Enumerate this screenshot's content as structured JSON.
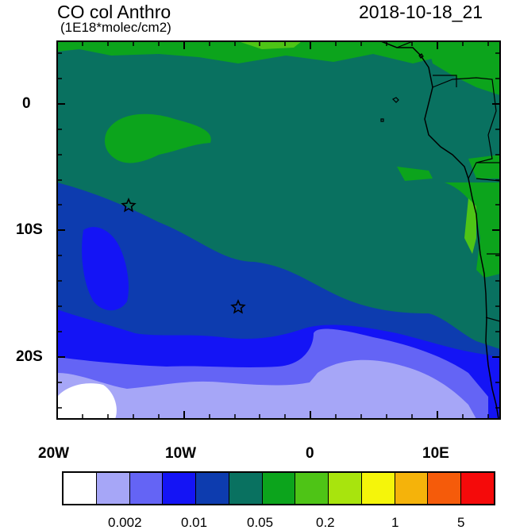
{
  "title": "CO col Anthro",
  "subtitle": "(1E18*molec/cm2)",
  "datetime": "2018-10-18_21",
  "x_ticks": [
    "20W",
    "10W",
    "0",
    "10E"
  ],
  "y_ticks": [
    "0",
    "10S",
    "20S"
  ],
  "colorbar": {
    "colors": [
      "#ffffff",
      "#a6a6f7",
      "#6464f5",
      "#1414f5",
      "#0d3caf",
      "#097160",
      "#0ca41c",
      "#4ec416",
      "#a8e40d",
      "#f5f50a",
      "#f5b30a",
      "#f55b0a",
      "#f50a0a"
    ],
    "labels": [
      "0.002",
      "0.01",
      "0.05",
      "0.2",
      "1",
      "5"
    ]
  },
  "markers": [
    {
      "lon": -14.2,
      "lat": -8.0
    },
    {
      "lon": -5.7,
      "lat": -16.0
    }
  ],
  "map_extent": {
    "lon": [
      -20,
      15
    ],
    "lat": [
      -25,
      5
    ]
  }
}
